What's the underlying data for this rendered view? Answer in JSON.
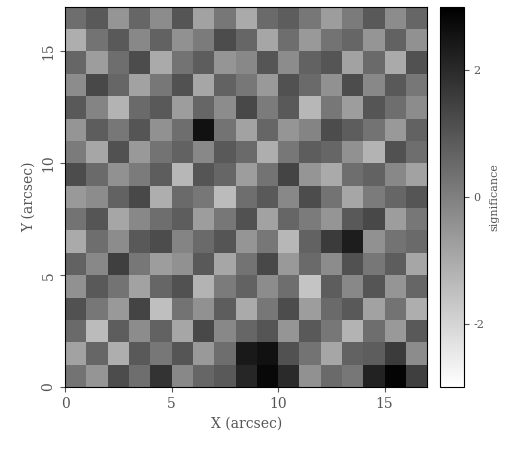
{
  "chart_data": {
    "type": "heatmap",
    "x_label": "X (arcsec)",
    "y_label": "Y (arcsec)",
    "xlim": [
      0,
      17
    ],
    "ylim": [
      0,
      17
    ],
    "xticks": [
      0,
      5,
      10,
      15
    ],
    "yticks": [
      0,
      5,
      10,
      15
    ],
    "colorbar_label": "significance",
    "colorbar_range": [
      -3,
      3
    ],
    "colorbar_ticks": [
      -2,
      0,
      2
    ],
    "cells": [
      [
        0.3,
        -0.5,
        1.2,
        0.4,
        1.8,
        -0.2,
        0.6,
        0.9,
        2.1,
        2.8,
        2.0,
        -0.4,
        0.5,
        0.2,
        2.2,
        2.9,
        1.5
      ],
      [
        -0.8,
        0.6,
        -1.1,
        0.9,
        0.2,
        1.0,
        -0.6,
        0.4,
        2.4,
        2.6,
        1.1,
        0.3,
        -0.9,
        0.7,
        0.8,
        1.6,
        -0.3
      ],
      [
        0.5,
        -1.4,
        0.8,
        -0.3,
        0.7,
        -0.9,
        1.3,
        -0.2,
        0.6,
        1.0,
        -0.5,
        0.9,
        0.2,
        -1.2,
        0.4,
        -0.6,
        0.9
      ],
      [
        1.1,
        0.2,
        -0.6,
        1.4,
        -1.5,
        0.3,
        -0.4,
        0.8,
        -1.0,
        0.2,
        1.2,
        -0.7,
        0.5,
        0.9,
        -0.8,
        0.3,
        -1.1
      ],
      [
        -0.4,
        0.9,
        0.3,
        -0.8,
        0.6,
        1.1,
        -1.2,
        0.1,
        0.7,
        -0.3,
        0.4,
        -1.6,
        0.8,
        -0.2,
        1.0,
        -0.5,
        0.6
      ],
      [
        0.7,
        -0.2,
        1.5,
        0.2,
        -0.7,
        -0.4,
        0.9,
        -0.9,
        0.3,
        1.3,
        -0.6,
        0.5,
        -0.3,
        1.1,
        0.2,
        0.8,
        -0.9
      ],
      [
        -1.0,
        0.4,
        -0.3,
        0.9,
        1.2,
        -0.1,
        0.5,
        1.0,
        -0.5,
        0.2,
        -1.3,
        0.7,
        1.6,
        2.3,
        -0.4,
        0.3,
        0.5
      ],
      [
        0.3,
        1.0,
        -0.9,
        -0.2,
        0.4,
        0.8,
        -0.7,
        0.2,
        1.1,
        -0.8,
        0.6,
        0.1,
        -0.5,
        0.9,
        1.3,
        -0.7,
        0.2
      ],
      [
        -0.6,
        -0.3,
        0.7,
        1.3,
        -1.1,
        0.5,
        0.2,
        -1.4,
        0.4,
        0.9,
        -0.2,
        1.2,
        0.3,
        -0.9,
        0.1,
        0.6,
        1.0
      ],
      [
        1.2,
        0.5,
        -0.4,
        0.1,
        0.8,
        -1.3,
        1.0,
        0.6,
        -0.7,
        0.3,
        1.4,
        -0.5,
        -1.0,
        0.4,
        0.7,
        -0.2,
        -0.8
      ],
      [
        0.1,
        -0.9,
        1.1,
        -0.6,
        0.3,
        0.7,
        -0.2,
        0.9,
        0.5,
        -1.1,
        0.2,
        0.8,
        0.6,
        -0.4,
        -1.2,
        1.1,
        0.4
      ],
      [
        -0.5,
        0.8,
        0.2,
        1.0,
        -0.4,
        0.4,
        2.6,
        0.3,
        -0.8,
        0.6,
        -0.5,
        -0.1,
        1.2,
        0.8,
        0.3,
        -0.6,
        0.7
      ],
      [
        0.9,
        -0.1,
        -1.2,
        0.5,
        0.9,
        -0.7,
        0.6,
        -0.3,
        1.3,
        0.1,
        0.9,
        -1.3,
        0.2,
        -0.7,
        1.0,
        0.4,
        -0.3
      ],
      [
        -0.3,
        1.3,
        0.6,
        -0.8,
        0.2,
        1.1,
        -0.9,
        0.7,
        0.2,
        -0.6,
        1.1,
        0.5,
        -0.4,
        1.2,
        -0.2,
        0.9,
        0.2
      ],
      [
        0.6,
        -0.7,
        0.4,
        1.2,
        -1.0,
        0.3,
        0.8,
        -0.5,
        -0.2,
        1.0,
        -0.3,
        0.7,
        1.0,
        -0.8,
        0.5,
        -1.0,
        1.1
      ],
      [
        -1.1,
        0.3,
        0.9,
        -0.2,
        0.7,
        -0.4,
        0.1,
        1.2,
        0.6,
        -0.9,
        0.4,
        -0.6,
        0.3,
        0.6,
        -0.5,
        0.7,
        -0.4
      ],
      [
        0.4,
        0.9,
        -0.5,
        0.6,
        -0.3,
        1.0,
        -0.8,
        0.2,
        -1.0,
        0.5,
        0.8,
        0.2,
        -0.7,
        0.1,
        0.9,
        -0.3,
        0.6
      ]
    ]
  }
}
